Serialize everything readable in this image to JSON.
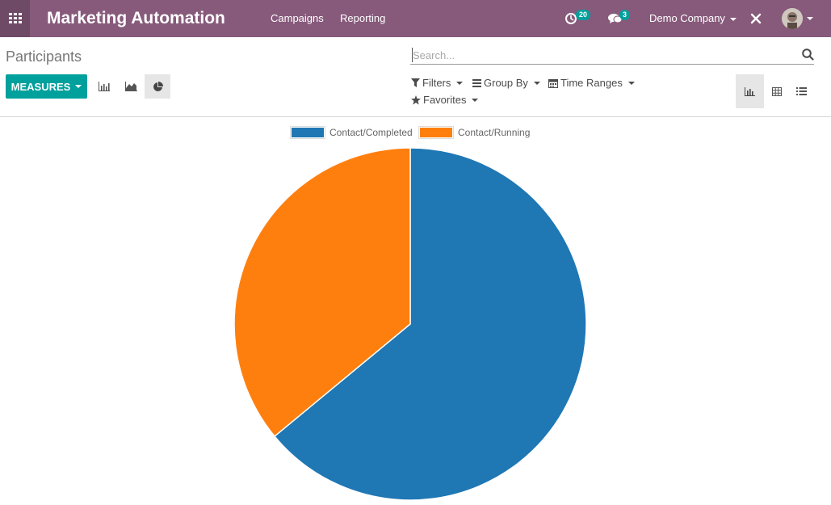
{
  "navbar": {
    "app_title": "Marketing Automation",
    "menu": [
      "Campaigns",
      "Reporting"
    ],
    "activity_count": "20",
    "messages_count": "3",
    "company": "Demo Company",
    "color": "#875a7b"
  },
  "control_panel": {
    "breadcrumb": "Participants",
    "search_placeholder": "Search...",
    "measures_label": "MEASURES",
    "filters_label": "Filters",
    "groupby_label": "Group By",
    "timeranges_label": "Time Ranges",
    "favorites_label": "Favorites",
    "chart_types": [
      "bar-chart-icon",
      "line-chart-icon",
      "pie-chart-icon"
    ],
    "active_chart_type": "pie-chart-icon",
    "views": [
      "graph-view-icon",
      "pivot-view-icon",
      "list-view-icon"
    ],
    "active_view": "graph-view-icon",
    "accent_color": "#00a09d"
  },
  "chart_data": {
    "type": "pie",
    "labels": [
      "Contact/Completed",
      "Contact/Running"
    ],
    "values": [
      64,
      36
    ],
    "colors": [
      "#1f77b4",
      "#ff7f0e"
    ],
    "legend": "top"
  }
}
